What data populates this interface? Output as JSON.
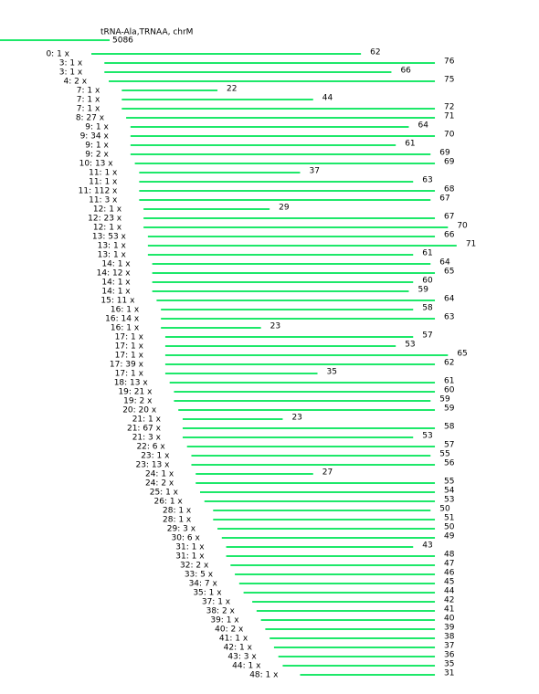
{
  "header": {
    "title": "tRNA-Ala,TRNAA, chrM",
    "total": "5086"
  },
  "rows": [
    {
      "label": "0: 1 x",
      "start": 0,
      "length": 62
    },
    {
      "label": "3: 1 x",
      "start": 3,
      "length": 76
    },
    {
      "label": "3: 1 x",
      "start": 3,
      "length": 66
    },
    {
      "label": "4: 2 x",
      "start": 4,
      "length": 75
    },
    {
      "label": "7: 1 x",
      "start": 7,
      "length": 22
    },
    {
      "label": "7: 1 x",
      "start": 7,
      "length": 44
    },
    {
      "label": "7: 1 x",
      "start": 7,
      "length": 72
    },
    {
      "label": "8: 27 x",
      "start": 8,
      "length": 71
    },
    {
      "label": "9: 1 x",
      "start": 9,
      "length": 64
    },
    {
      "label": "9: 34 x",
      "start": 9,
      "length": 70
    },
    {
      "label": "9: 1 x",
      "start": 9,
      "length": 61
    },
    {
      "label": "9: 2 x",
      "start": 9,
      "length": 69
    },
    {
      "label": "10: 13 x",
      "start": 10,
      "length": 69
    },
    {
      "label": "11: 1 x",
      "start": 11,
      "length": 37
    },
    {
      "label": "11: 1 x",
      "start": 11,
      "length": 63
    },
    {
      "label": "11: 112 x",
      "start": 11,
      "length": 68
    },
    {
      "label": "11: 3 x",
      "start": 11,
      "length": 67
    },
    {
      "label": "12: 1 x",
      "start": 12,
      "length": 29
    },
    {
      "label": "12: 23 x",
      "start": 12,
      "length": 67
    },
    {
      "label": "12: 1 x",
      "start": 12,
      "length": 70
    },
    {
      "label": "13: 53 x",
      "start": 13,
      "length": 66
    },
    {
      "label": "13: 1 x",
      "start": 13,
      "length": 71
    },
    {
      "label": "13: 1 x",
      "start": 13,
      "length": 61
    },
    {
      "label": "14: 1 x",
      "start": 14,
      "length": 64
    },
    {
      "label": "14: 12 x",
      "start": 14,
      "length": 65
    },
    {
      "label": "14: 1 x",
      "start": 14,
      "length": 60
    },
    {
      "label": "14: 1 x",
      "start": 14,
      "length": 59
    },
    {
      "label": "15: 11 x",
      "start": 15,
      "length": 64
    },
    {
      "label": "16: 1 x",
      "start": 16,
      "length": 58
    },
    {
      "label": "16: 14 x",
      "start": 16,
      "length": 63
    },
    {
      "label": "16: 1 x",
      "start": 16,
      "length": 23
    },
    {
      "label": "17: 1 x",
      "start": 17,
      "length": 57
    },
    {
      "label": "17: 1 x",
      "start": 17,
      "length": 53
    },
    {
      "label": "17: 1 x",
      "start": 17,
      "length": 65
    },
    {
      "label": "17: 39 x",
      "start": 17,
      "length": 62
    },
    {
      "label": "17: 1 x",
      "start": 17,
      "length": 35
    },
    {
      "label": "18: 13 x",
      "start": 18,
      "length": 61
    },
    {
      "label": "19: 21 x",
      "start": 19,
      "length": 60
    },
    {
      "label": "19: 2 x",
      "start": 19,
      "length": 59
    },
    {
      "label": "20: 20 x",
      "start": 20,
      "length": 59
    },
    {
      "label": "21: 1 x",
      "start": 21,
      "length": 23
    },
    {
      "label": "21: 67 x",
      "start": 21,
      "length": 58
    },
    {
      "label": "21: 3 x",
      "start": 21,
      "length": 53
    },
    {
      "label": "22: 6 x",
      "start": 22,
      "length": 57
    },
    {
      "label": "23: 1 x",
      "start": 23,
      "length": 55
    },
    {
      "label": "23: 13 x",
      "start": 23,
      "length": 56
    },
    {
      "label": "24: 1 x",
      "start": 24,
      "length": 27
    },
    {
      "label": "24: 2 x",
      "start": 24,
      "length": 55
    },
    {
      "label": "25: 1 x",
      "start": 25,
      "length": 54
    },
    {
      "label": "26: 1 x",
      "start": 26,
      "length": 53
    },
    {
      "label": "28: 1 x",
      "start": 28,
      "length": 50
    },
    {
      "label": "28: 1 x",
      "start": 28,
      "length": 51
    },
    {
      "label": "29: 3 x",
      "start": 29,
      "length": 50
    },
    {
      "label": "30: 6 x",
      "start": 30,
      "length": 49
    },
    {
      "label": "31: 1 x",
      "start": 31,
      "length": 43
    },
    {
      "label": "31: 1 x",
      "start": 31,
      "length": 48
    },
    {
      "label": "32: 2 x",
      "start": 32,
      "length": 47
    },
    {
      "label": "33: 5 x",
      "start": 33,
      "length": 46
    },
    {
      "label": "34: 7 x",
      "start": 34,
      "length": 45
    },
    {
      "label": "35: 1 x",
      "start": 35,
      "length": 44
    },
    {
      "label": "37: 1 x",
      "start": 37,
      "length": 42
    },
    {
      "label": "38: 2 x",
      "start": 38,
      "length": 41
    },
    {
      "label": "39: 1 x",
      "start": 39,
      "length": 40
    },
    {
      "label": "40: 2 x",
      "start": 40,
      "length": 39
    },
    {
      "label": "41: 1 x",
      "start": 41,
      "length": 38
    },
    {
      "label": "42: 1 x",
      "start": 42,
      "length": 37
    },
    {
      "label": "43: 3 x",
      "start": 43,
      "length": 36
    },
    {
      "label": "44: 1 x",
      "start": 44,
      "length": 35
    },
    {
      "label": "48: 1 x",
      "start": 48,
      "length": 31
    }
  ]
}
